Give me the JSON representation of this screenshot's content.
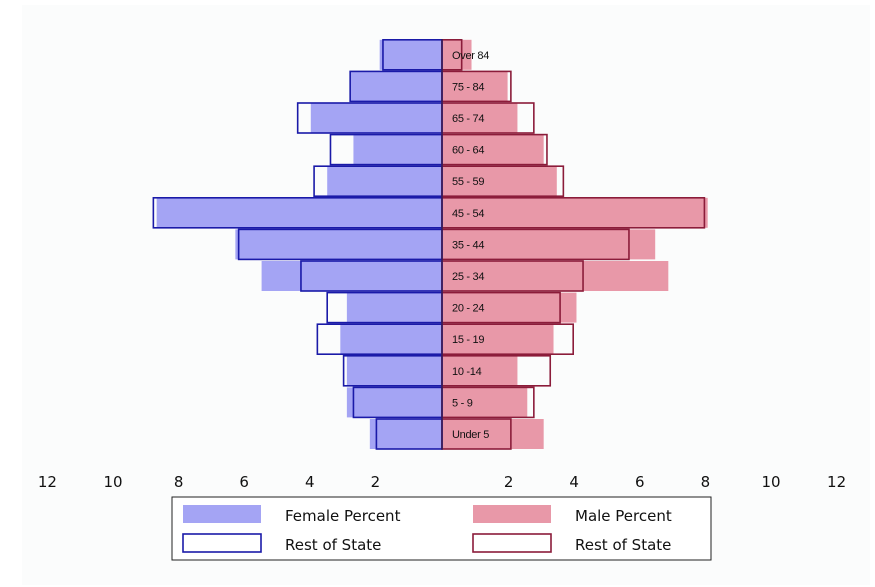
{
  "chart_data": {
    "type": "bar",
    "orientation": "horizontal",
    "layout": "population-pyramid",
    "categories": [
      "Under 5",
      "5 - 9",
      "10 -14",
      "15 - 19",
      "20 - 24",
      "25 - 34",
      "35 - 44",
      "45 - 54",
      "55 - 59",
      "60 - 64",
      "65 - 74",
      "75 - 84",
      "Over 84"
    ],
    "series": [
      {
        "name": "Female Percent",
        "side": "left",
        "style": "filled",
        "color": "#a4a4f4",
        "values": [
          2.2,
          2.9,
          2.9,
          3.1,
          2.9,
          5.5,
          6.3,
          8.7,
          3.5,
          2.7,
          4.0,
          2.8,
          1.9
        ]
      },
      {
        "name": "Rest of State",
        "side": "left",
        "style": "outline",
        "color": "#1a1aa8",
        "values": [
          2.0,
          2.7,
          3.0,
          3.8,
          3.5,
          4.3,
          6.2,
          8.8,
          3.9,
          3.4,
          4.4,
          2.8,
          1.8
        ]
      },
      {
        "name": "Male Percent",
        "side": "right",
        "style": "filled",
        "color": "#e898a8",
        "values": [
          3.1,
          2.6,
          2.3,
          3.4,
          4.1,
          6.9,
          6.5,
          8.1,
          3.5,
          3.1,
          2.3,
          2.0,
          0.9
        ]
      },
      {
        "name": "Rest of State",
        "side": "right",
        "style": "outline",
        "color": "#8b1c3a",
        "values": [
          2.1,
          2.8,
          3.3,
          4.0,
          3.6,
          4.3,
          5.7,
          8.0,
          3.7,
          3.2,
          2.8,
          2.1,
          0.6
        ]
      }
    ],
    "x_ticks_left": [
      "12",
      "10",
      "8",
      "6",
      "4",
      "2"
    ],
    "x_ticks_right": [
      "2",
      "4",
      "6",
      "8",
      "10",
      "12"
    ],
    "xlim": [
      -12,
      12
    ],
    "title": "",
    "xlabel": "",
    "ylabel": "",
    "grid": false,
    "legend_position": "bottom"
  }
}
